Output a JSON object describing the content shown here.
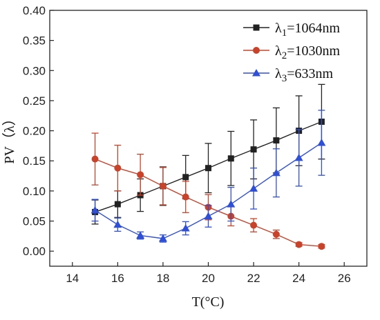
{
  "chart_data": {
    "type": "line",
    "title": "",
    "xlabel": "T(°C)",
    "ylabel": "PV（λ）",
    "xlim": [
      13,
      27
    ],
    "ylim": [
      -0.025,
      0.4
    ],
    "xticks": [
      14,
      16,
      18,
      20,
      22,
      24,
      26
    ],
    "yticks": [
      0.0,
      0.05,
      0.1,
      0.15,
      0.2,
      0.25,
      0.3,
      0.35,
      0.4
    ],
    "grid": false,
    "legend_position": "top-right",
    "x": [
      15,
      16,
      17,
      18,
      19,
      20,
      21,
      22,
      23,
      24,
      25
    ],
    "series": [
      {
        "name_main": "λ",
        "name_sub": "1",
        "name_rest": "=1064nm",
        "color": "#222222",
        "marker": "square",
        "values": [
          0.065,
          0.078,
          0.093,
          0.108,
          0.123,
          0.138,
          0.154,
          0.169,
          0.184,
          0.2,
          0.215
        ],
        "errors": [
          0.02,
          0.022,
          0.027,
          0.032,
          0.036,
          0.041,
          0.045,
          0.049,
          0.054,
          0.058,
          0.062
        ]
      },
      {
        "name_main": "λ",
        "name_sub": "2",
        "name_rest": "=1030nm",
        "color": "#c8432a",
        "marker": "circle",
        "values": [
          0.153,
          0.138,
          0.127,
          0.108,
          0.09,
          0.073,
          0.058,
          0.043,
          0.028,
          0.011,
          0.008
        ],
        "errors": [
          0.043,
          0.038,
          0.034,
          0.031,
          0.026,
          0.021,
          0.016,
          0.011,
          0.007,
          0.003,
          0.003
        ]
      },
      {
        "name_main": "λ",
        "name_sub": "3",
        "name_rest": "=633nm",
        "color": "#2e4fd6",
        "marker": "triangle",
        "values": [
          0.068,
          0.044,
          0.026,
          0.021,
          0.038,
          0.058,
          0.078,
          0.104,
          0.13,
          0.155,
          0.18
        ],
        "errors": [
          0.018,
          0.011,
          0.006,
          0.006,
          0.011,
          0.018,
          0.028,
          0.034,
          0.04,
          0.047,
          0.054
        ]
      }
    ]
  }
}
